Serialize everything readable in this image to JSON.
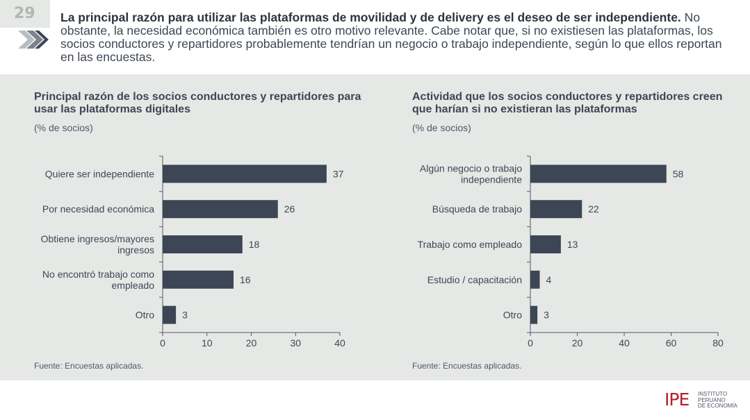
{
  "page_number": "29",
  "headline": {
    "bold": "La principal razón para utilizar las plataformas de movilidad y de delivery es el deseo de ser independiente.",
    "rest": " No obstante, la necesidad económica también es otro motivo relevante. Cabe notar que, si no existiesen las plataformas, los socios conductores y repartidores probablemente tendrían un negocio o trabajo independiente, según lo que ellos reportan en las encuestas."
  },
  "icons": {
    "header": "chevron-right-icon"
  },
  "colors": {
    "bar": "#3d4654",
    "panel": "#e6e8e6",
    "brand": "#b3202a"
  },
  "chart_data": [
    {
      "type": "bar",
      "orientation": "horizontal",
      "title": "Principal razón de los socios conductores y repartidores para usar las plataformas digitales",
      "unit": "(% de socios)",
      "categories": [
        [
          "Quiere ser independiente"
        ],
        [
          "Por necesidad económica"
        ],
        [
          "Obtiene ingresos/mayores",
          "ingresos"
        ],
        [
          "No encontró trabajo como",
          "empleado"
        ],
        [
          "Otro"
        ]
      ],
      "values": [
        37,
        26,
        18,
        16,
        3
      ],
      "xlim": [
        0,
        40
      ],
      "xticks": [
        0,
        10,
        20,
        30,
        40
      ],
      "source": "Fuente: Encuestas aplicadas."
    },
    {
      "type": "bar",
      "orientation": "horizontal",
      "title": "Actividad que los socios conductores y repartidores creen que harían si no existieran las plataformas",
      "unit": "(% de socios)",
      "categories": [
        [
          "Algún negocio o trabajo",
          "independiente"
        ],
        [
          "Búsqueda de trabajo"
        ],
        [
          "Trabajo como empleado"
        ],
        [
          "Estudio / capacitación"
        ],
        [
          "Otro"
        ]
      ],
      "values": [
        58,
        22,
        13,
        4,
        3
      ],
      "xlim": [
        0,
        80
      ],
      "xticks": [
        0,
        20,
        40,
        60,
        80
      ],
      "source": "Fuente: Encuestas aplicadas."
    }
  ],
  "logo": {
    "mark": "IPE",
    "lines": [
      "INSTITUTO",
      "PERUANO",
      "DE ECONOMÍA"
    ]
  }
}
